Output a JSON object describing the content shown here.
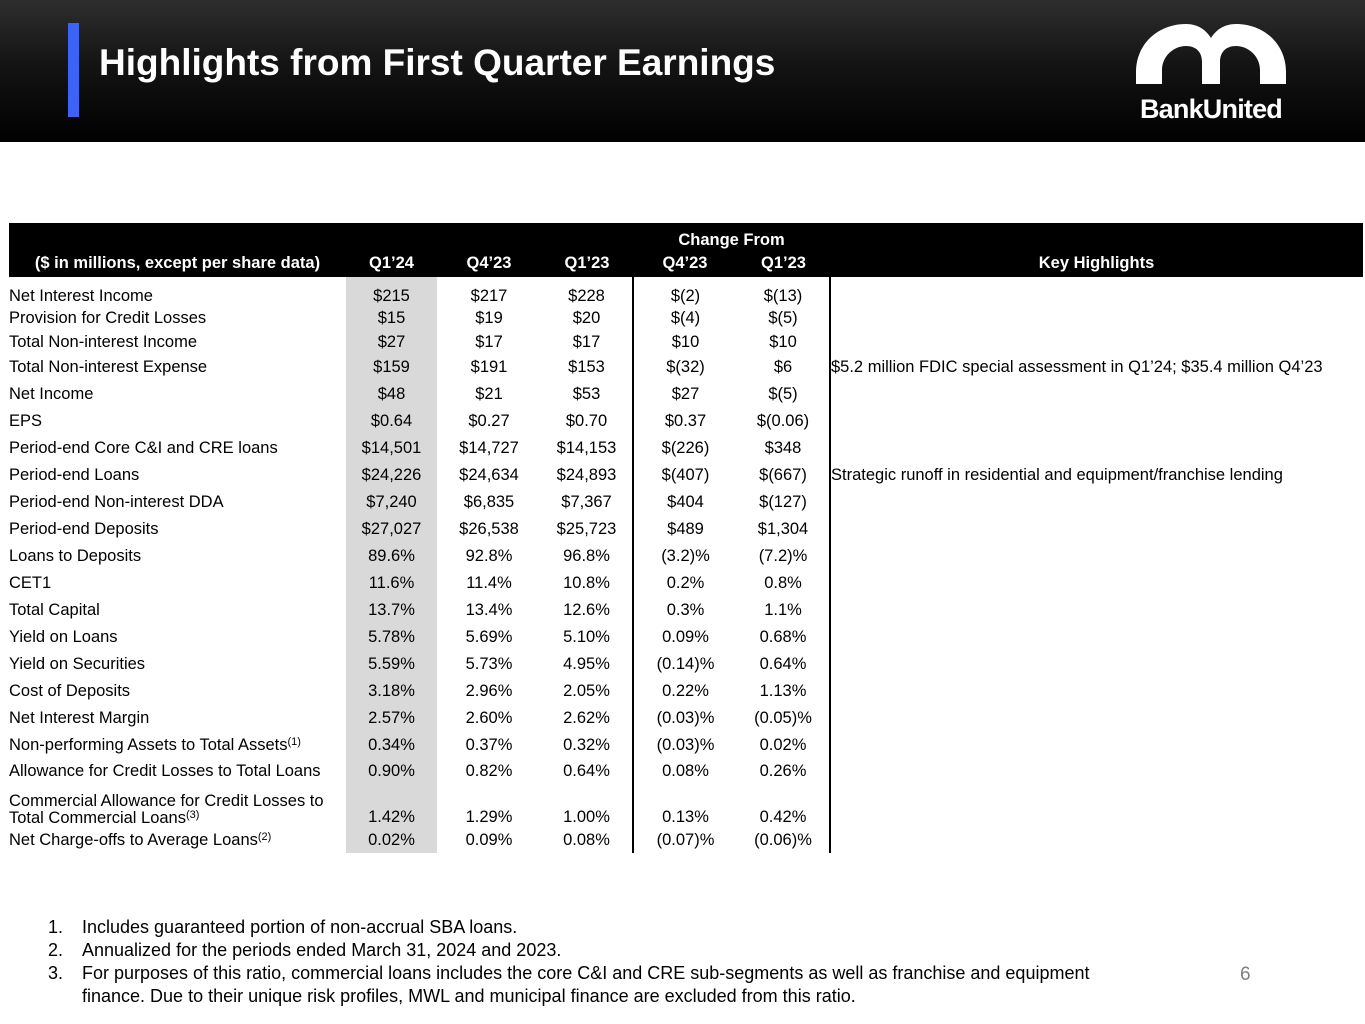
{
  "header": {
    "title": "Highlights from First Quarter Earnings",
    "logo_text": "BankUnited",
    "accent_color": "#3b63f5"
  },
  "table": {
    "group_header": "Change From",
    "columns": {
      "label": "($ in millions, except per share data)",
      "c1": "Q1’24",
      "c2": "Q4’23",
      "c3": "Q1’23",
      "c4": "Q4’23",
      "c5": "Q1’23",
      "highlights": "Key Highlights"
    },
    "rows": [
      {
        "label": "Net Interest Income",
        "q1_24": "$215",
        "q4_23": "$217",
        "q1_23": "$228",
        "chg_q4_23": "$(2)",
        "chg_q1_23": "$(13)",
        "highlight": ""
      },
      {
        "label": "Provision for Credit Losses",
        "q1_24": "$15",
        "q4_23": "$19",
        "q1_23": "$20",
        "chg_q4_23": "$(4)",
        "chg_q1_23": "$(5)",
        "highlight": ""
      },
      {
        "label": "Total Non-interest Income",
        "q1_24": "$27",
        "q4_23": "$17",
        "q1_23": "$17",
        "chg_q4_23": "$10",
        "chg_q1_23": "$10",
        "highlight": ""
      },
      {
        "label": "Total Non-interest Expense",
        "q1_24": "$159",
        "q4_23": "$191",
        "q1_23": "$153",
        "chg_q4_23": "$(32)",
        "chg_q1_23": "$6",
        "highlight": "$5.2 million FDIC special assessment in Q1’24; $35.4 million Q4’23"
      },
      {
        "label": "Net Income",
        "q1_24": "$48",
        "q4_23": "$21",
        "q1_23": "$53",
        "chg_q4_23": "$27",
        "chg_q1_23": "$(5)",
        "highlight": ""
      },
      {
        "label": "EPS",
        "q1_24": "$0.64",
        "q4_23": "$0.27",
        "q1_23": "$0.70",
        "chg_q4_23": "$0.37",
        "chg_q1_23": "$(0.06)",
        "highlight": ""
      },
      {
        "label": "Period-end Core C&I and CRE loans",
        "q1_24": "$14,501",
        "q4_23": "$14,727",
        "q1_23": "$14,153",
        "chg_q4_23": "$(226)",
        "chg_q1_23": "$348",
        "highlight": ""
      },
      {
        "label": "Period-end Loans",
        "q1_24": "$24,226",
        "q4_23": "$24,634",
        "q1_23": "$24,893",
        "chg_q4_23": "$(407)",
        "chg_q1_23": "$(667)",
        "highlight": "Strategic runoff in residential and equipment/franchise lending"
      },
      {
        "label": "Period-end Non-interest DDA",
        "q1_24": "$7,240",
        "q4_23": "$6,835",
        "q1_23": "$7,367",
        "chg_q4_23": "$404",
        "chg_q1_23": "$(127)",
        "highlight": ""
      },
      {
        "label": "Period-end Deposits",
        "q1_24": "$27,027",
        "q4_23": "$26,538",
        "q1_23": "$25,723",
        "chg_q4_23": "$489",
        "chg_q1_23": "$1,304",
        "highlight": ""
      },
      {
        "label": "Loans to Deposits",
        "q1_24": "89.6%",
        "q4_23": "92.8%",
        "q1_23": "96.8%",
        "chg_q4_23": "(3.2)%",
        "chg_q1_23": "(7.2)%",
        "highlight": ""
      },
      {
        "label": "CET1",
        "q1_24": "11.6%",
        "q4_23": "11.4%",
        "q1_23": "10.8%",
        "chg_q4_23": "0.2%",
        "chg_q1_23": "0.8%",
        "highlight": ""
      },
      {
        "label": "Total Capital",
        "q1_24": "13.7%",
        "q4_23": "13.4%",
        "q1_23": "12.6%",
        "chg_q4_23": "0.3%",
        "chg_q1_23": "1.1%",
        "highlight": ""
      },
      {
        "label": "Yield on Loans",
        "q1_24": "5.78%",
        "q4_23": "5.69%",
        "q1_23": "5.10%",
        "chg_q4_23": "0.09%",
        "chg_q1_23": "0.68%",
        "highlight": ""
      },
      {
        "label": "Yield on Securities",
        "q1_24": "5.59%",
        "q4_23": "5.73%",
        "q1_23": "4.95%",
        "chg_q4_23": "(0.14)%",
        "chg_q1_23": "0.64%",
        "highlight": ""
      },
      {
        "label": "Cost of Deposits",
        "q1_24": "3.18%",
        "q4_23": "2.96%",
        "q1_23": "2.05%",
        "chg_q4_23": "0.22%",
        "chg_q1_23": "1.13%",
        "highlight": ""
      },
      {
        "label": "Net Interest Margin",
        "q1_24": "2.57%",
        "q4_23": "2.60%",
        "q1_23": "2.62%",
        "chg_q4_23": "(0.03)%",
        "chg_q1_23": "(0.05)%",
        "highlight": ""
      },
      {
        "label": "Non-performing Assets to Total Assets",
        "sup": "(1)",
        "q1_24": "0.34%",
        "q4_23": "0.37%",
        "q1_23": "0.32%",
        "chg_q4_23": "(0.03)%",
        "chg_q1_23": "0.02%",
        "highlight": ""
      },
      {
        "label": "Allowance for Credit Losses to Total Loans",
        "q1_24": "0.90%",
        "q4_23": "0.82%",
        "q1_23": "0.64%",
        "chg_q4_23": "0.08%",
        "chg_q1_23": "0.26%",
        "highlight": ""
      },
      {
        "label_line1": "Commercial Allowance for Credit Losses to",
        "label_line2": "Total Commercial Loans",
        "sup": "(3)",
        "q1_24": "1.42%",
        "q4_23": "1.29%",
        "q1_23": "1.00%",
        "chg_q4_23": "0.13%",
        "chg_q1_23": "0.42%",
        "highlight": ""
      },
      {
        "label": "Net Charge-offs to Average Loans",
        "sup": "(2)",
        "q1_24": "0.02%",
        "q4_23": "0.09%",
        "q1_23": "0.08%",
        "chg_q4_23": "(0.07)%",
        "chg_q1_23": "(0.06)%",
        "highlight": ""
      }
    ]
  },
  "footnotes": [
    {
      "num": "1.",
      "text": "Includes guaranteed portion of non-accrual SBA loans."
    },
    {
      "num": "2.",
      "text": "Annualized for the periods ended March 31, 2024 and 2023."
    },
    {
      "num": "3.",
      "text": "For purposes of this ratio, commercial loans includes the core C&I and CRE sub-segments as well as franchise and equipment finance. Due to their unique risk profiles, MWL and municipal finance are excluded from this ratio."
    }
  ],
  "page_number": "6"
}
